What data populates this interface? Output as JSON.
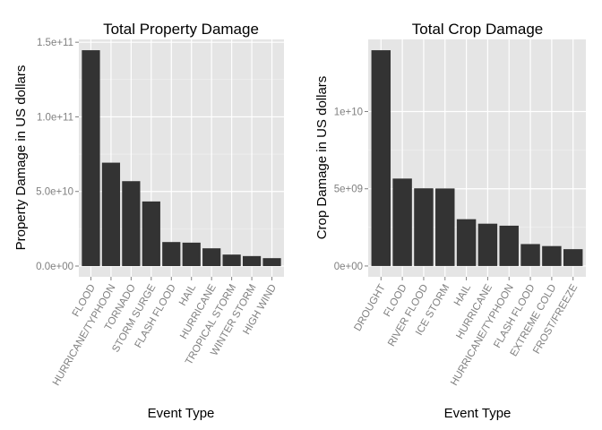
{
  "colors": {
    "panel_background": "#E5E5E5",
    "grid_major": "#FFFFFF",
    "grid_minor": "#F2F2F2",
    "bar_fill": "#333333",
    "tick_text": "#7F7F7F",
    "title_text": "#000000"
  },
  "chart_data": [
    {
      "type": "bar",
      "title": "Total Property Damage",
      "xlabel": "Event Type",
      "ylabel": "Property Damage in US dollars",
      "categories": [
        "FLOOD",
        "HURRICANE/TYPHOON",
        "TORNADO",
        "STORM SURGE",
        "FLASH FLOOD",
        "HAIL",
        "HURRICANE",
        "TROPICAL STORM",
        "WINTER STORM",
        "HIGH WIND"
      ],
      "values": [
        144660000000,
        69300000000,
        56900000000,
        43300000000,
        16100000000,
        15700000000,
        11900000000,
        7700000000,
        6700000000,
        5300000000
      ],
      "ylim": [
        -7200000000,
        151900000000
      ],
      "yticks": [
        0,
        50000000000,
        100000000000,
        150000000000
      ],
      "ytick_labels": [
        "0.0e+00",
        "5.0e+10",
        "1.0e+11",
        "1.5e+11"
      ],
      "grid": true,
      "legend": "none"
    },
    {
      "type": "bar",
      "title": "Total Crop Damage",
      "xlabel": "Event Type",
      "ylabel": "Crop Damage in US dollars",
      "categories": [
        "DROUGHT",
        "FLOOD",
        "RIVER FLOOD",
        "ICE STORM",
        "HAIL",
        "HURRICANE",
        "HURRICANE/TYPHOON",
        "FLASH FLOOD",
        "EXTREME COLD",
        "FROST/FREEZE"
      ],
      "values": [
        13970000000,
        5660000000,
        5030000000,
        5020000000,
        3030000000,
        2740000000,
        2610000000,
        1420000000,
        1290000000,
        1090000000
      ],
      "ylim": [
        -700000000,
        14670000000
      ],
      "yticks": [
        0,
        5000000000,
        10000000000
      ],
      "ytick_labels": [
        "0e+00",
        "5e+09",
        "1e+10"
      ],
      "grid": true,
      "legend": "none"
    }
  ]
}
